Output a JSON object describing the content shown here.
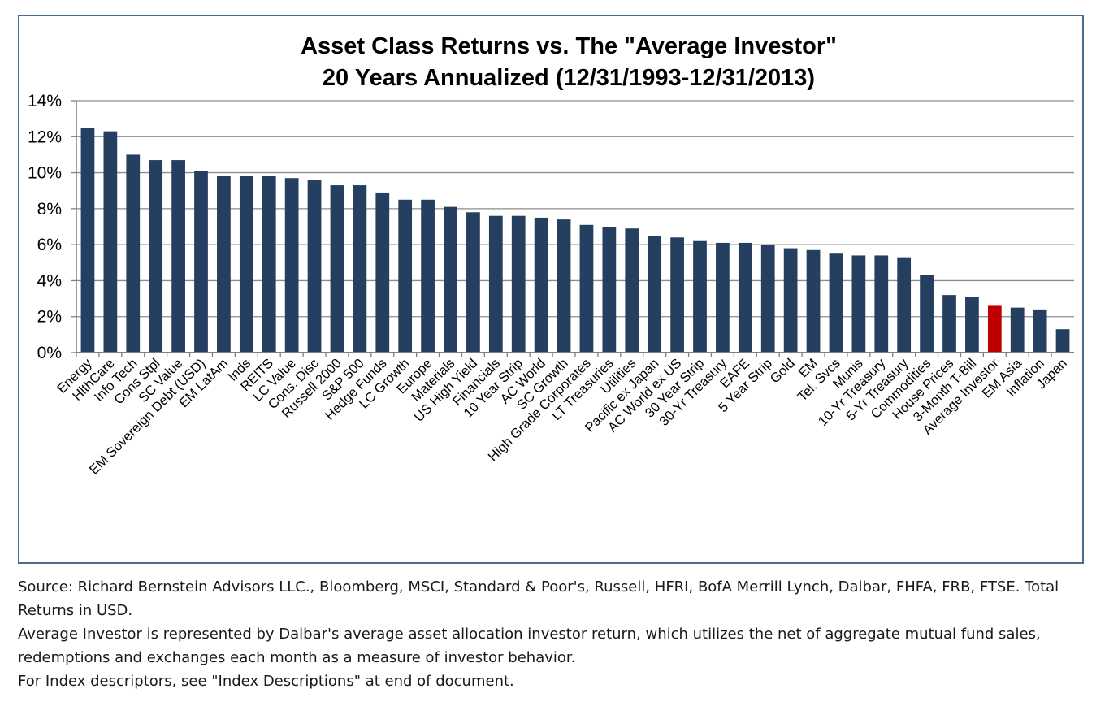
{
  "chart_data": {
    "type": "bar",
    "title": "Asset Class Returns vs. The \"Average Investor\"",
    "subtitle": "20 Years Annualized (12/31/1993-12/31/2013)",
    "xlabel": "",
    "ylabel": "",
    "ylim": [
      0,
      14
    ],
    "yticks": [
      "0%",
      "2%",
      "4%",
      "6%",
      "8%",
      "10%",
      "12%",
      "14%"
    ],
    "grid": true,
    "legend": "none",
    "bar_color": "#243f60",
    "highlight_color": "#c00000",
    "highlight_category": "Average Investor",
    "categories": [
      "Energy",
      "HlthCare",
      "Info Tech",
      "Cons Stpl",
      "SC Value",
      "EM Sovereign Debt (USD)",
      "EM LatAm",
      "Inds",
      "REITS",
      "LC Value",
      "Cons. Disc",
      "Russell 2000",
      "S&P 500",
      "Hedge Funds",
      "LC Growth",
      "Europe",
      "Materials",
      "US High Yield",
      "Financials",
      "10 Year Strip",
      "AC World",
      "SC Growth",
      "High Grade Corporates",
      "LT Treasuries",
      "Utilities",
      "Pacific ex Japan",
      "AC World ex US",
      "30 Year Strip",
      "30-Yr Treasury",
      "EAFE",
      "5 Year Strip",
      "Gold",
      "EM",
      "Tel. Svcs",
      "Munis",
      "10-Yr Treasury",
      "5-Yr Treasury",
      "Commodities",
      "House Prices",
      "3-Month T-Bill",
      "Average Investor",
      "EM Asia",
      "Inflation",
      "Japan"
    ],
    "values": [
      12.5,
      12.3,
      11.0,
      10.7,
      10.7,
      10.1,
      9.8,
      9.8,
      9.8,
      9.7,
      9.6,
      9.3,
      9.3,
      8.9,
      8.5,
      8.5,
      8.1,
      7.8,
      7.6,
      7.6,
      7.5,
      7.4,
      7.1,
      7.0,
      6.9,
      6.5,
      6.4,
      6.2,
      6.1,
      6.1,
      6.0,
      5.8,
      5.7,
      5.5,
      5.4,
      5.4,
      5.3,
      4.3,
      3.2,
      3.1,
      2.6,
      2.5,
      2.4,
      1.3
    ]
  },
  "footnotes": {
    "source": "Source: Richard Bernstein Advisors LLC., Bloomberg, MSCI, Standard & Poor's, Russell, HFRI, BofA Merrill Lynch, Dalbar, FHFA, FRB, FTSE.  Total Returns in USD.",
    "average_investor": "Average Investor is represented by Dalbar's average asset allocation investor return, which utilizes the net of aggregate mutual fund sales, redemptions and exchanges each month as a measure of investor behavior.",
    "index_descriptions": "For Index descriptors, see \"Index Descriptions\" at end of document."
  }
}
